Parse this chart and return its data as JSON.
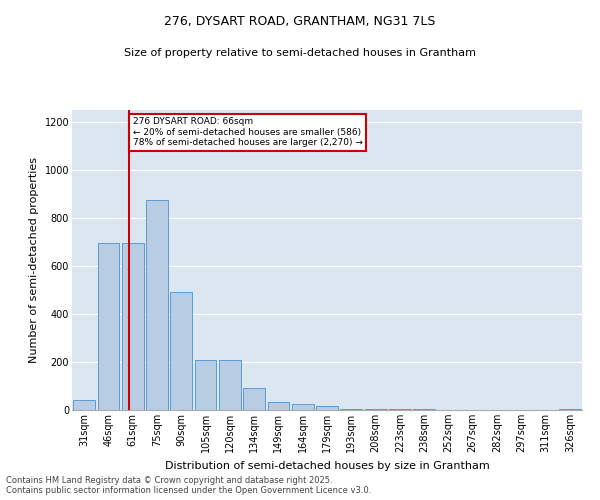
{
  "title1": "276, DYSART ROAD, GRANTHAM, NG31 7LS",
  "title2": "Size of property relative to semi-detached houses in Grantham",
  "xlabel": "Distribution of semi-detached houses by size in Grantham",
  "ylabel": "Number of semi-detached properties",
  "categories": [
    "31sqm",
    "46sqm",
    "61sqm",
    "75sqm",
    "90sqm",
    "105sqm",
    "120sqm",
    "134sqm",
    "149sqm",
    "164sqm",
    "179sqm",
    "193sqm",
    "208sqm",
    "223sqm",
    "238sqm",
    "252sqm",
    "267sqm",
    "282sqm",
    "297sqm",
    "311sqm",
    "326sqm"
  ],
  "values": [
    40,
    695,
    695,
    875,
    490,
    210,
    210,
    90,
    35,
    25,
    15,
    5,
    5,
    3,
    3,
    2,
    2,
    2,
    1,
    1,
    5
  ],
  "bar_color": "#b8cce4",
  "bar_edge_color": "#5b9bd5",
  "vline_color": "#cc0000",
  "vline_bin": 2,
  "annotation_title": "276 DYSART ROAD: 66sqm",
  "annotation_line1": "← 20% of semi-detached houses are smaller (586)",
  "annotation_line2": "78% of semi-detached houses are larger (2,270) →",
  "annotation_box_facecolor": "#ffffff",
  "annotation_box_edgecolor": "#cc0000",
  "ylim": [
    0,
    1250
  ],
  "yticks": [
    0,
    200,
    400,
    600,
    800,
    1000,
    1200
  ],
  "background_color": "#dce6f1",
  "grid_color": "#ffffff",
  "footer1": "Contains HM Land Registry data © Crown copyright and database right 2025.",
  "footer2": "Contains public sector information licensed under the Open Government Licence v3.0.",
  "title1_fontsize": 9,
  "title2_fontsize": 8,
  "xlabel_fontsize": 8,
  "ylabel_fontsize": 8,
  "tick_fontsize": 7,
  "footer_fontsize": 6
}
